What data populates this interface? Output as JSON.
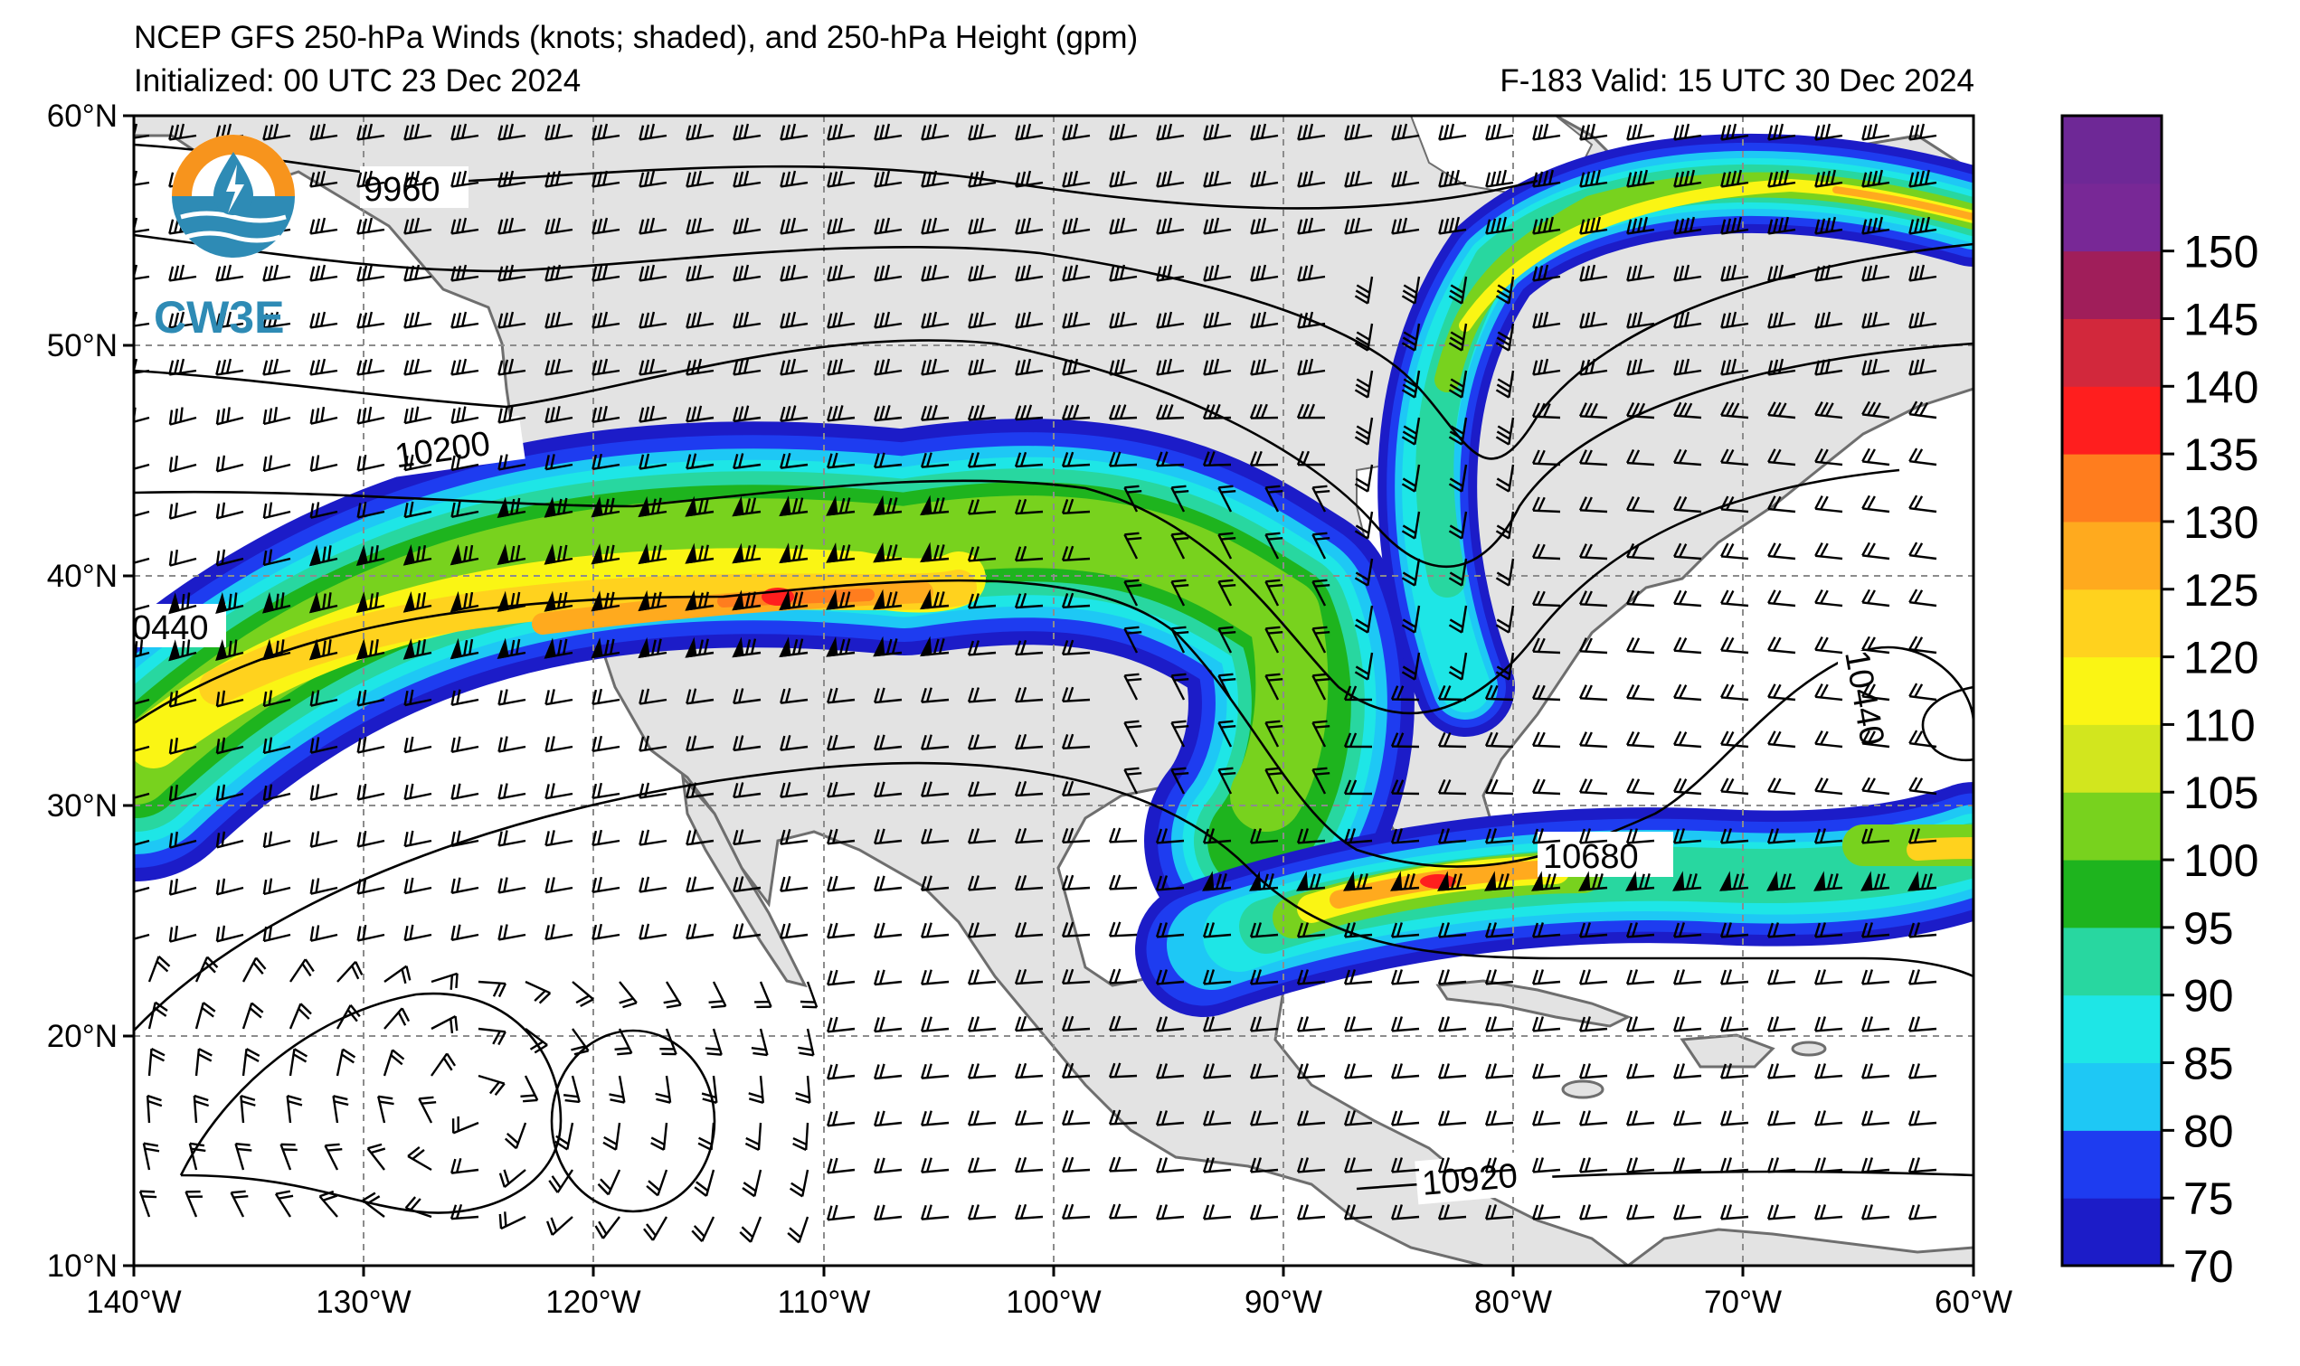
{
  "header": {
    "title": "NCEP GFS 250-hPa Winds (knots; shaded), and 250-hPa Height (gpm)",
    "initialized": "Initialized: 00 UTC 23 Dec 2024",
    "valid": "F-183  Valid: 15 UTC 30 Dec 2024"
  },
  "logo": {
    "text": "CW3E",
    "ring_color": "#f7941d",
    "water_color": "#2e8bb5"
  },
  "map": {
    "lon_min": -140,
    "lon_max": -60,
    "lat_min": 10,
    "lat_max": 60,
    "lat_labels": [
      "60°N",
      "50°N",
      "40°N",
      "30°N",
      "20°N",
      "10°N"
    ],
    "lon_labels": [
      "140°W",
      "130°W",
      "120°W",
      "110°W",
      "100°W",
      "90°W",
      "80°W",
      "70°W",
      "60°W"
    ],
    "land_color": "#e3e3e3",
    "contour_labels": [
      "9960",
      "10200",
      "0440",
      "10440",
      "10680",
      "10920"
    ]
  },
  "colorbar": {
    "unit": "knots",
    "levels": [
      {
        "value": "70",
        "color": "#1c1cc8"
      },
      {
        "value": "75",
        "color": "#1e3cf0"
      },
      {
        "value": "80",
        "color": "#1ec8f5"
      },
      {
        "value": "85",
        "color": "#1ee6e6"
      },
      {
        "value": "90",
        "color": "#28d7a0"
      },
      {
        "value": "95",
        "color": "#1eb41e"
      },
      {
        "value": "100",
        "color": "#78d21e"
      },
      {
        "value": "105",
        "color": "#d2e61e"
      },
      {
        "value": "110",
        "color": "#faf514"
      },
      {
        "value": "120",
        "color": "#ffd21e"
      },
      {
        "value": "125",
        "color": "#ffaa1e"
      },
      {
        "value": "130",
        "color": "#ff7d1e"
      },
      {
        "value": "135",
        "color": "#ff1e1e"
      },
      {
        "value": "140",
        "color": "#d2283c"
      },
      {
        "value": "145",
        "color": "#a01e5a"
      },
      {
        "value": "150",
        "color": "#782896"
      },
      {
        "value": "",
        "color": "#6e2896"
      }
    ],
    "tick_labels": [
      "70",
      "75",
      "80",
      "85",
      "90",
      "95",
      "100",
      "105",
      "110",
      "120",
      "125",
      "130",
      "135",
      "140",
      "145",
      "150"
    ]
  }
}
